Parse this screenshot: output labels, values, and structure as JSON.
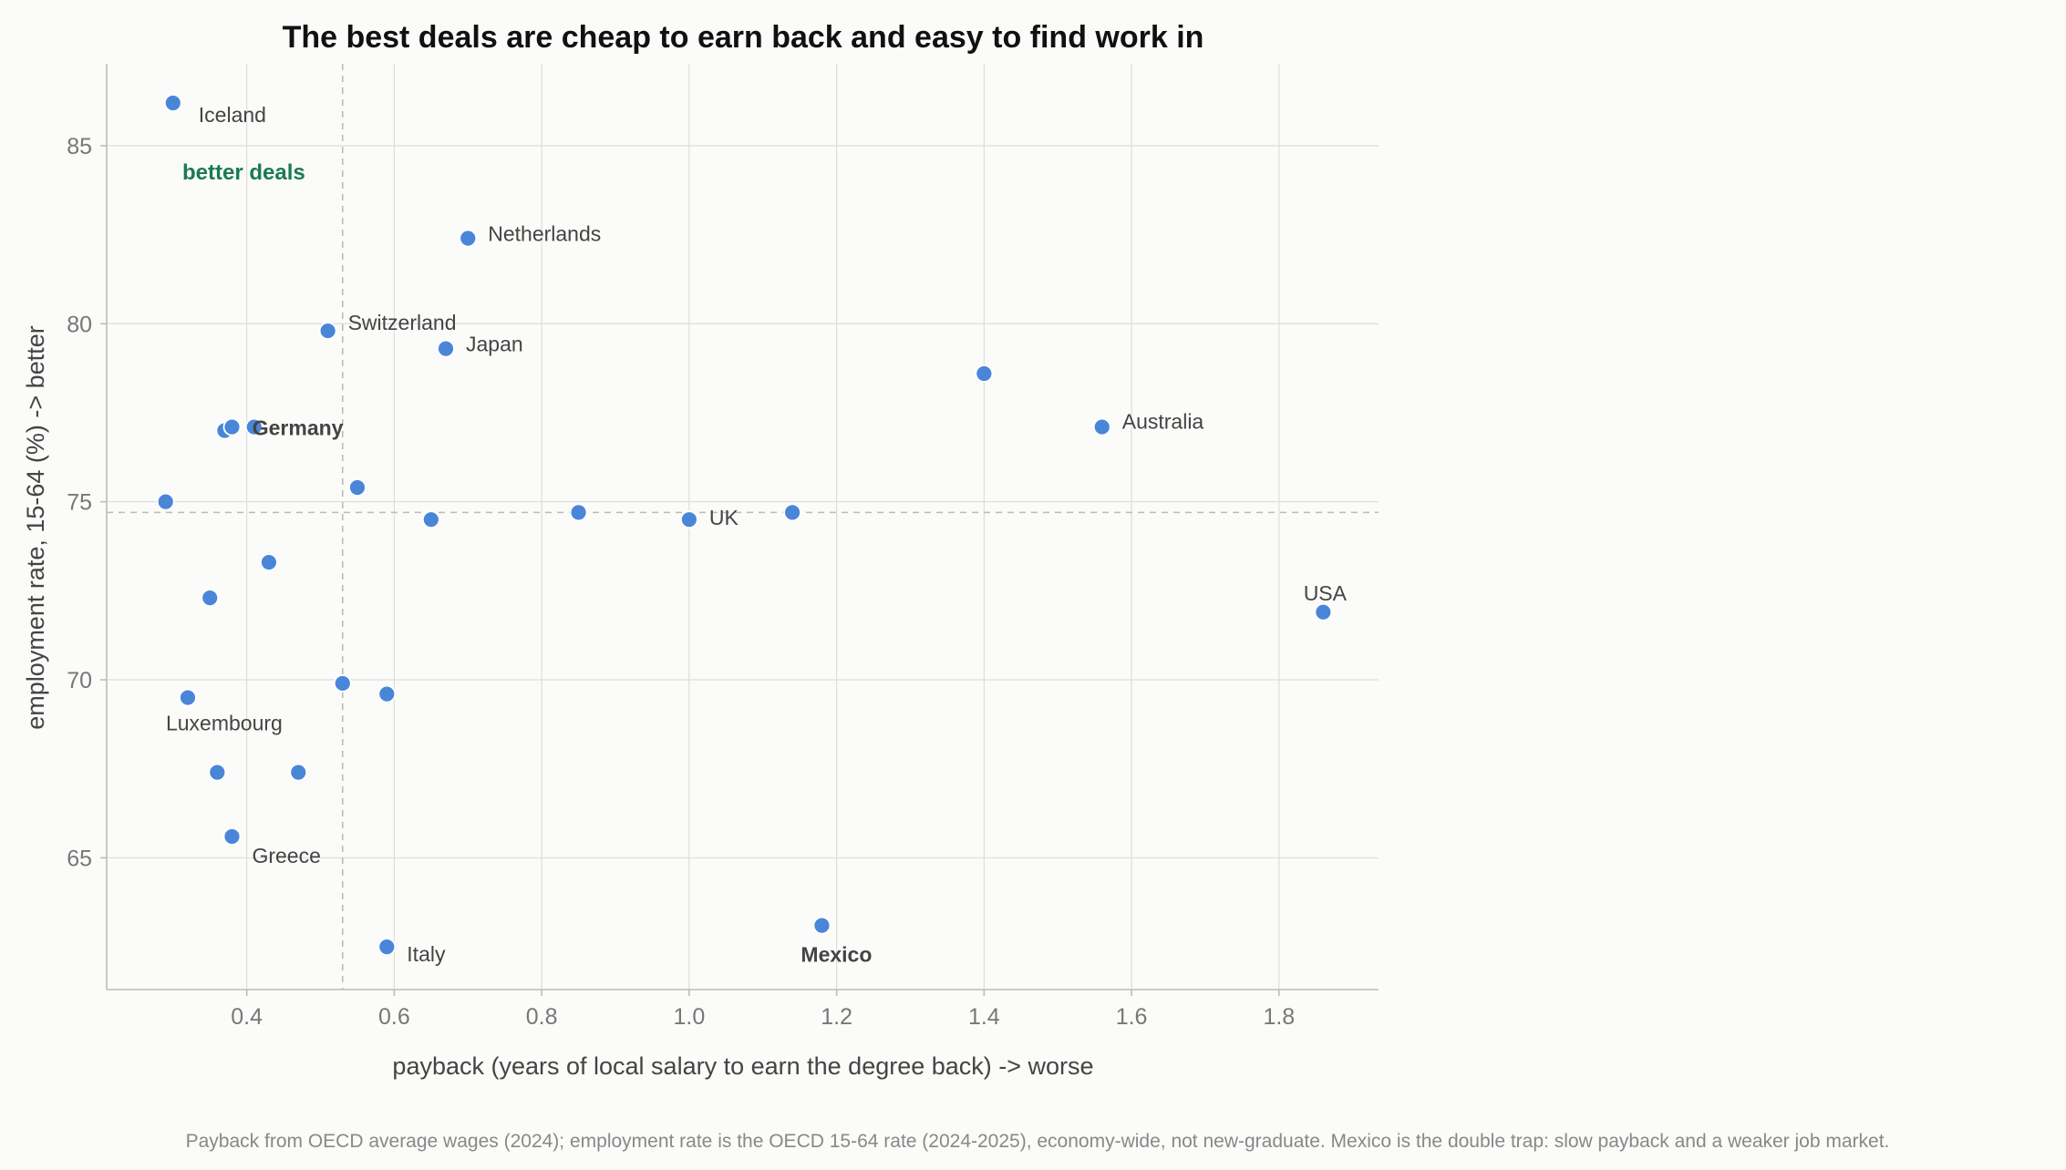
{
  "chart_data": {
    "type": "scatter",
    "title": "The best deals are cheap to earn back and easy to find work in",
    "xlabel": "payback (years of local salary to earn the degree back)  ->  worse",
    "ylabel": "employment rate, 15-64 (%)  ->  better",
    "caption": "Payback from OECD average wages (2024); employment rate is the OECD 15-64 rate (2024-2025), economy-wide, not new-graduate. Mexico is the double trap: slow payback and a weaker job market.",
    "xlim": [
      0.21,
      1.935
    ],
    "ylim": [
      61.3,
      87.3
    ],
    "xticks": [
      0.4,
      0.6,
      0.8,
      1.0,
      1.2,
      1.4,
      1.6,
      1.8
    ],
    "yticks": [
      65,
      70,
      75,
      80,
      85
    ],
    "grid": true,
    "ref_lines": {
      "x": 0.53,
      "y": 74.7
    },
    "quadrant_label": "better deals",
    "colors": {
      "point": "#4a86d8",
      "good": "#1a7a55",
      "bad": "#d83a3a",
      "text": "#444444"
    },
    "points": [
      {
        "x": 0.3,
        "y": 86.2,
        "label": "Iceland",
        "style": "normal"
      },
      {
        "x": 0.7,
        "y": 82.4,
        "label": "Netherlands",
        "style": "good"
      },
      {
        "x": 0.51,
        "y": 79.8,
        "label": "Switzerland",
        "style": "normal"
      },
      {
        "x": 0.67,
        "y": 79.3,
        "label": "Japan",
        "style": "normal"
      },
      {
        "x": 1.4,
        "y": 78.6,
        "label": "",
        "style": "normal"
      },
      {
        "x": 1.56,
        "y": 77.1,
        "label": "Australia",
        "style": "normal"
      },
      {
        "x": 0.37,
        "y": 77.0,
        "label": "",
        "style": "normal"
      },
      {
        "x": 0.38,
        "y": 77.1,
        "label": "",
        "style": "normal"
      },
      {
        "x": 0.41,
        "y": 77.1,
        "label": "Germany",
        "style": "good-bold"
      },
      {
        "x": 0.29,
        "y": 75.0,
        "label": "",
        "style": "normal"
      },
      {
        "x": 0.55,
        "y": 75.4,
        "label": "",
        "style": "normal"
      },
      {
        "x": 0.65,
        "y": 74.5,
        "label": "",
        "style": "normal"
      },
      {
        "x": 0.85,
        "y": 74.7,
        "label": "",
        "style": "normal"
      },
      {
        "x": 1.0,
        "y": 74.5,
        "label": "UK",
        "style": "normal"
      },
      {
        "x": 1.14,
        "y": 74.7,
        "label": "",
        "style": "normal"
      },
      {
        "x": 0.43,
        "y": 73.3,
        "label": "",
        "style": "normal"
      },
      {
        "x": 0.35,
        "y": 72.3,
        "label": "",
        "style": "normal"
      },
      {
        "x": 1.86,
        "y": 71.9,
        "label": "USA",
        "style": "normal"
      },
      {
        "x": 0.53,
        "y": 69.9,
        "label": "",
        "style": "normal"
      },
      {
        "x": 0.59,
        "y": 69.6,
        "label": "",
        "style": "normal"
      },
      {
        "x": 0.32,
        "y": 69.5,
        "label": "Luxembourg",
        "style": "normal"
      },
      {
        "x": 0.36,
        "y": 67.4,
        "label": "",
        "style": "normal"
      },
      {
        "x": 0.47,
        "y": 67.4,
        "label": "",
        "style": "normal"
      },
      {
        "x": 0.38,
        "y": 65.6,
        "label": "Greece",
        "style": "normal"
      },
      {
        "x": 1.18,
        "y": 63.1,
        "label": "Mexico",
        "style": "bad"
      },
      {
        "x": 0.59,
        "y": 62.5,
        "label": "Italy",
        "style": "normal"
      }
    ]
  }
}
